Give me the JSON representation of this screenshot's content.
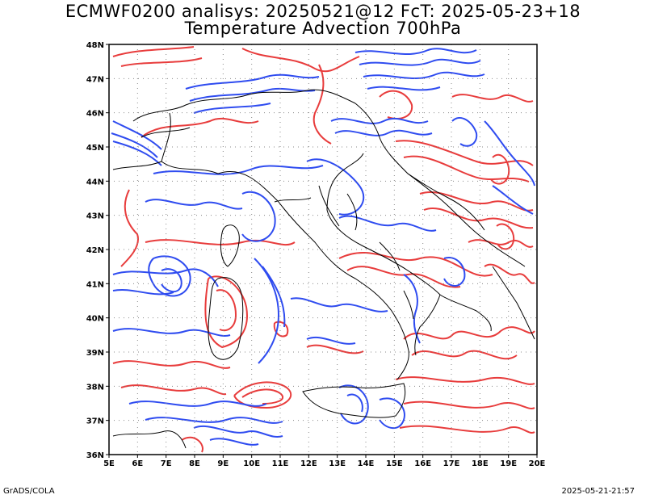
{
  "title_line1": "ECMWF0200 analisys: 20250521@12 FcT: 2025-05-23+18",
  "title_line2": "Temperature Advection 700hPa",
  "footer_left": "GrADS/COLA",
  "footer_right": "2025-05-21-21:57",
  "map": {
    "lon_range": [
      5,
      20
    ],
    "lat_range": [
      36,
      48
    ],
    "lon_labels": [
      "5E",
      "6E",
      "7E",
      "8E",
      "9E",
      "10E",
      "11E",
      "12E",
      "13E",
      "14E",
      "15E",
      "16E",
      "17E",
      "18E",
      "19E",
      "20E"
    ],
    "lat_labels": [
      "36N",
      "37N",
      "38N",
      "39N",
      "40N",
      "41N",
      "42N",
      "43N",
      "44N",
      "45N",
      "46N",
      "47N",
      "48N"
    ],
    "grid": true,
    "colors": {
      "positive_contours": "#e83c3c",
      "negative_contours": "#2f4cf0",
      "coastline": "#000000",
      "grid": "#888888"
    }
  }
}
